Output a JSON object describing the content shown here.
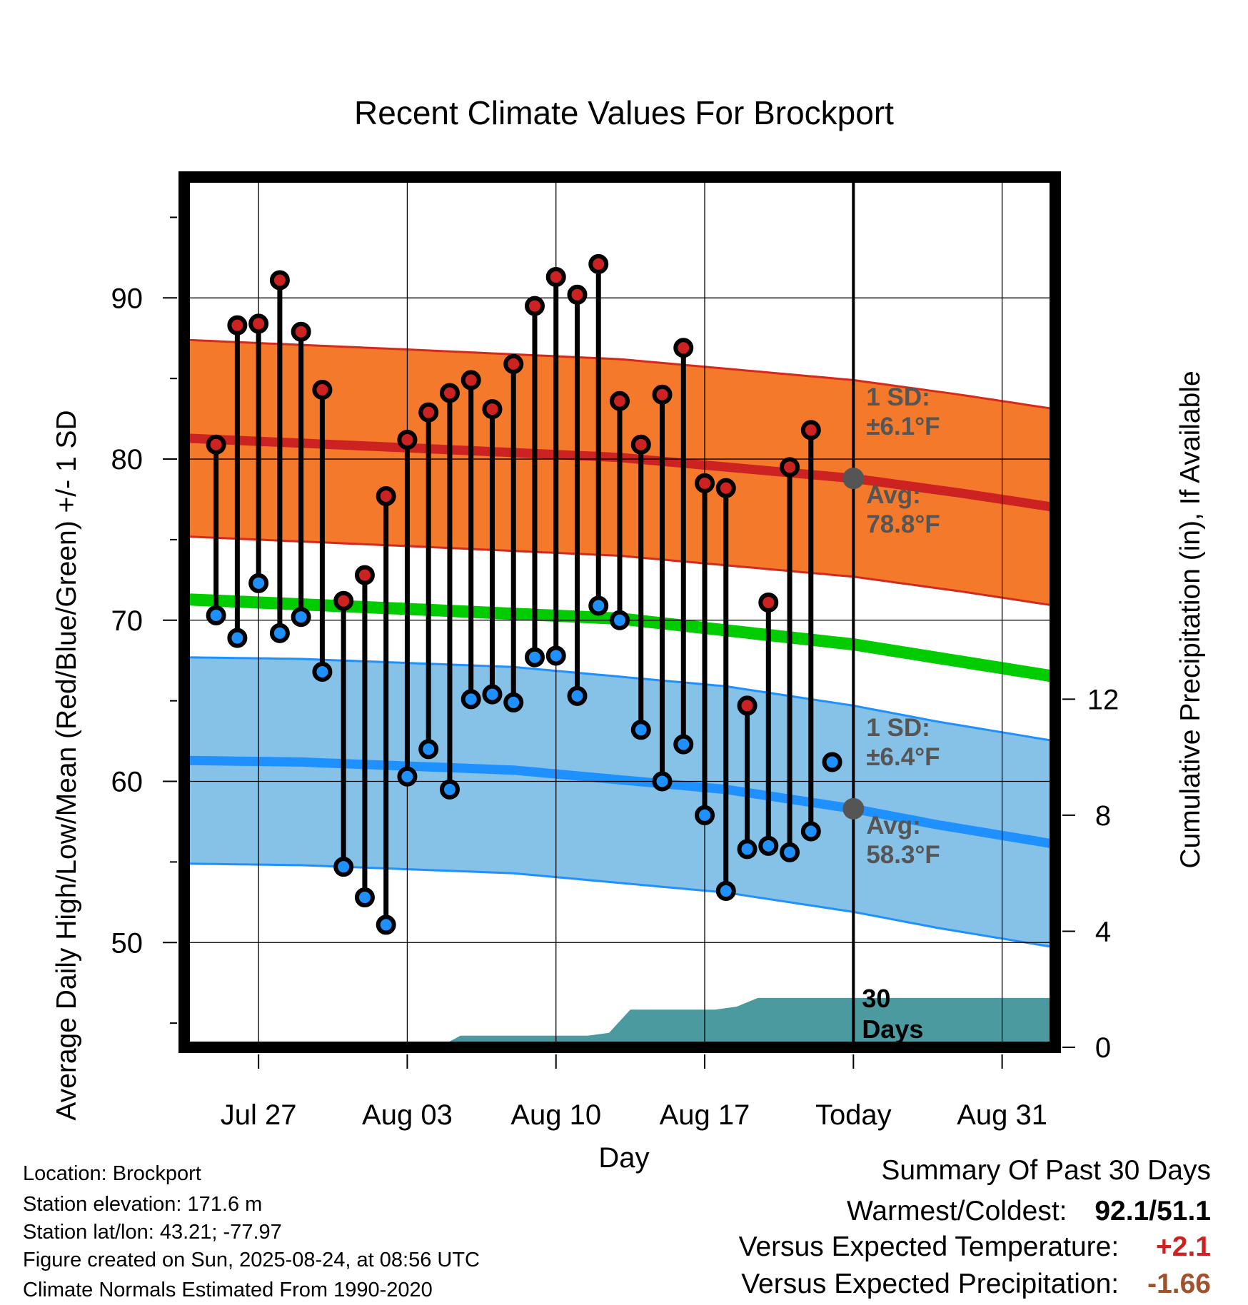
{
  "chart_data": {
    "type": "line",
    "title": "Recent Climate Values For Brockport",
    "xlabel": "Day",
    "ylabel": "Average Daily High/Low/Mean (Red/Blue/Green) +/- 1 SD",
    "y2label": "Cumulative Precipitation (in), If Available",
    "x_tick_labels": [
      "Jul 27",
      "Aug 03",
      "Aug 10",
      "Aug 17",
      "Today",
      "Aug 31"
    ],
    "x_tick_days": [
      3,
      10,
      17,
      24,
      31,
      38
    ],
    "xlim": [
      -0.5,
      40.5
    ],
    "ylim": [
      43.5,
      97.5
    ],
    "y_ticks": [
      50,
      60,
      70,
      80,
      90
    ],
    "y2lim": [
      0,
      30
    ],
    "y2_ticks": [
      0,
      4,
      8,
      12
    ],
    "grid": true,
    "today_day": 31,
    "days": [
      1,
      2,
      3,
      4,
      5,
      6,
      7,
      8,
      9,
      10,
      11,
      12,
      13,
      14,
      15,
      16,
      17,
      18,
      19,
      20,
      21,
      22,
      23,
      24,
      25,
      26,
      27,
      28,
      29,
      30
    ],
    "series": [
      {
        "name": "Daily High",
        "color": "#cc2222",
        "values": [
          80.9,
          88.3,
          88.4,
          91.1,
          87.9,
          84.3,
          71.2,
          72.8,
          77.7,
          81.2,
          82.9,
          84.1,
          84.9,
          83.1,
          85.9,
          89.5,
          91.3,
          90.2,
          92.1,
          83.6,
          80.9,
          84.0,
          86.9,
          78.5,
          78.2,
          64.7,
          71.1,
          79.5,
          81.8,
          null
        ]
      },
      {
        "name": "Daily Low",
        "color": "#1e90ff",
        "values": [
          70.3,
          68.9,
          72.3,
          69.2,
          70.2,
          66.8,
          54.7,
          52.8,
          51.1,
          60.3,
          62.0,
          59.5,
          65.1,
          65.4,
          64.9,
          67.7,
          67.8,
          65.3,
          70.9,
          70.0,
          63.2,
          60.0,
          62.3,
          57.9,
          53.2,
          55.8,
          56.0,
          55.6,
          56.9,
          61.2
        ]
      },
      {
        "name": "Normal High",
        "color": "#cc2222",
        "days": [
          -0.5,
          10,
          20,
          31,
          36,
          40.5
        ],
        "values": [
          81.3,
          80.7,
          80.1,
          78.8,
          77.9,
          77.0
        ]
      },
      {
        "name": "Normal Low",
        "color": "#1e90ff",
        "days": [
          -0.5,
          5,
          15,
          25,
          31,
          35,
          40.5
        ],
        "values": [
          61.3,
          61.2,
          60.7,
          59.5,
          58.3,
          57.3,
          56.1
        ]
      },
      {
        "name": "Normal Mean",
        "color": "#00cc00",
        "days": [
          -0.5,
          10,
          20,
          31,
          40.5
        ],
        "values": [
          71.3,
          70.7,
          70.1,
          68.5,
          66.5
        ]
      }
    ],
    "high_sd_band": {
      "sd": 6.1,
      "color": "#f5792a"
    },
    "low_sd_band": {
      "sd": 6.4,
      "color": "#86c1e8"
    },
    "precipitation": {
      "color": "#4a9aa0",
      "days": [
        -0.5,
        11.5,
        12.5,
        16.5,
        17,
        18.5,
        19.5,
        20.5,
        22.5,
        24.5,
        25.5,
        26.5,
        31,
        40.5
      ],
      "values": [
        0,
        0,
        0.4,
        0.4,
        0.4,
        0.4,
        0.5,
        1.3,
        1.3,
        1.3,
        1.4,
        1.7,
        1.7,
        1.7
      ]
    },
    "annotations": {
      "high_sd": "1 SD:",
      "high_sd_val": "±6.1°F",
      "high_avg": "Avg:",
      "high_avg_val": "78.8°F",
      "low_sd": "1 SD:",
      "low_sd_val": "±6.4°F",
      "low_avg": "Avg:",
      "low_avg_val": "58.3°F",
      "days_count": "30",
      "days_word": "Days"
    }
  },
  "footer": {
    "location": "Location: Brockport",
    "elevation": "Station elevation: 171.6 m",
    "latlon": "Station lat/lon: 43.21; -77.97",
    "created": "Figure created on Sun, 2025-08-24, at 08:56 UTC",
    "normals": "Climate Normals Estimated From 1990-2020"
  },
  "summary": {
    "heading": "Summary Of Past 30 Days",
    "warm_cold_label": "Warmest/Coldest:",
    "warmest": "92.1",
    "slash": "/",
    "coldest": "51.1",
    "temp_label": "Versus Expected Temperature:",
    "temp_value": "+2.1",
    "temp_color": "#cc2222",
    "precip_label": "Versus Expected Precipitation:",
    "precip_value": "-1.66",
    "precip_color": "#a0522d"
  }
}
